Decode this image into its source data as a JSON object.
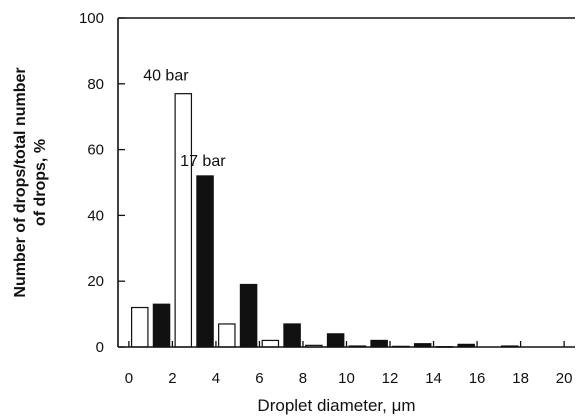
{
  "chart_data": {
    "type": "bar",
    "xlabel": "Droplet diameter,  μm",
    "ylabel_lines": [
      "Number of drops/total number",
      "of drops, %"
    ],
    "ylim": [
      0,
      100
    ],
    "xlim": [
      -0.5,
      20.5
    ],
    "yticks": [
      0,
      20,
      40,
      60,
      80,
      100
    ],
    "xticks": [
      0,
      2,
      4,
      6,
      8,
      10,
      12,
      14,
      16,
      18,
      20
    ],
    "grid": false,
    "legend": "none",
    "bar_width": 0.75,
    "series": [
      {
        "name": "40 bar",
        "fill": "#ffffff",
        "stroke": "#111111",
        "x": [
          0.5,
          2.5,
          4.5,
          6.5,
          8.5,
          10.5,
          12.5,
          14.5
        ],
        "values": [
          12,
          77,
          7,
          2,
          0.5,
          0.3,
          0.2,
          0.1
        ]
      },
      {
        "name": "17 bar",
        "fill": "#111111",
        "stroke": "#111111",
        "x": [
          1.5,
          3.5,
          5.5,
          7.5,
          9.5,
          11.5,
          13.5,
          15.5,
          17.5
        ],
        "values": [
          13,
          52,
          19,
          7,
          4,
          2,
          1,
          0.8,
          0.3
        ]
      }
    ],
    "annotations": [
      {
        "text": "40 bar",
        "series": "40 bar",
        "x": 1.7,
        "y": 81
      },
      {
        "text": "17 bar",
        "series": "17 bar",
        "x": 3.4,
        "y": 55
      }
    ]
  }
}
